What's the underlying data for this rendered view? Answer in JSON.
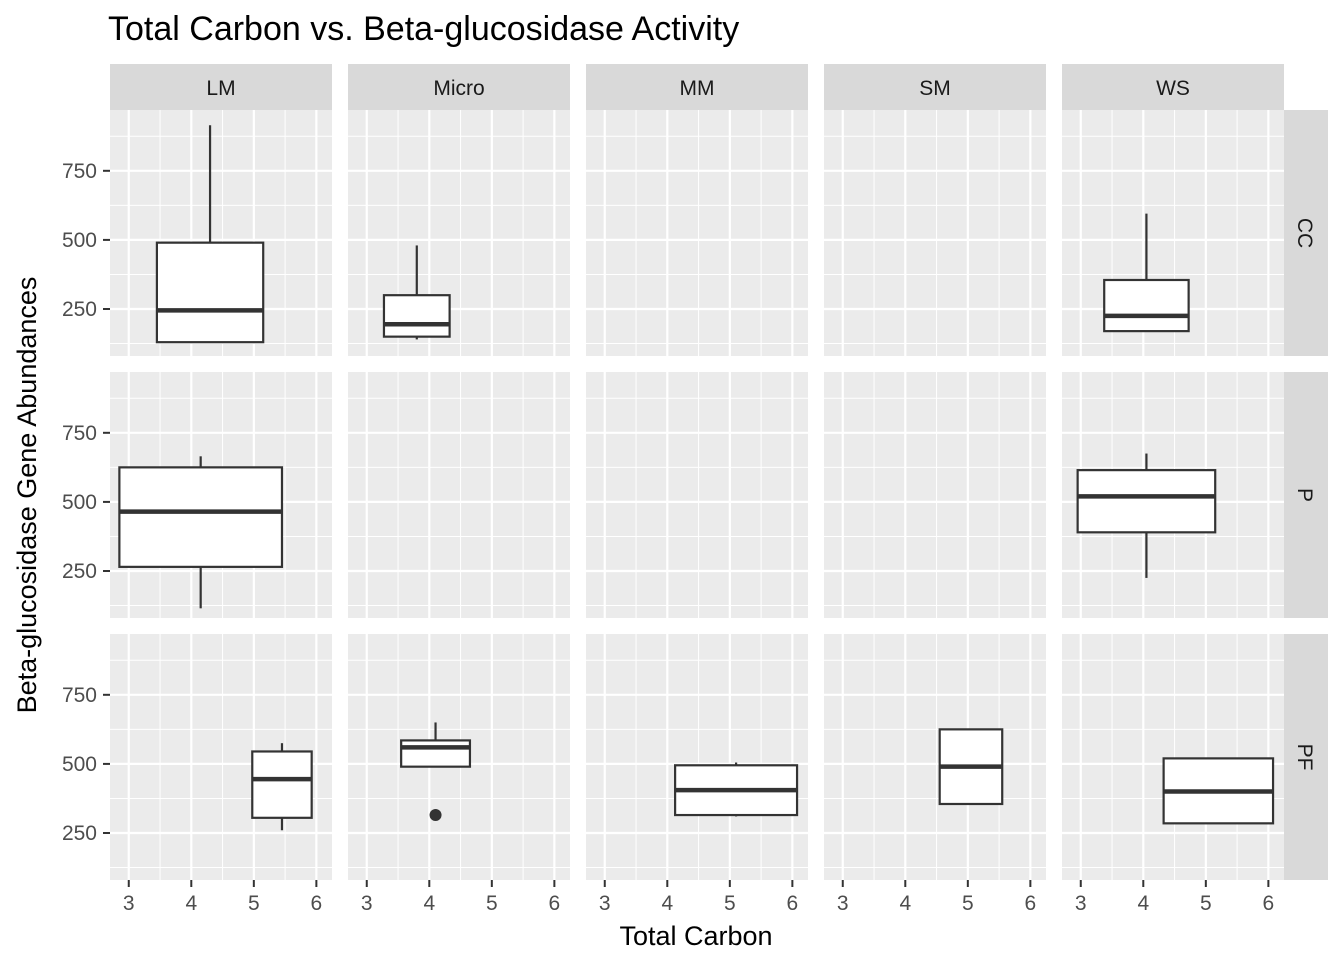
{
  "chart_data": {
    "type": "boxplot",
    "title": "Total Carbon vs. Beta-glucosidase Activity",
    "xlabel": "Total Carbon",
    "ylabel": "Beta-glucosidase Gene Abundances",
    "columns": [
      "LM",
      "Micro",
      "MM",
      "SM",
      "WS"
    ],
    "rows": [
      "CC",
      "P",
      "PF"
    ],
    "xlim": [
      2.7,
      6.25
    ],
    "ylim": [
      80,
      970
    ],
    "x_ticks": [
      3,
      4,
      5,
      6
    ],
    "y_ticks": [
      250,
      500,
      750
    ],
    "grid": true,
    "colors": {
      "panel_bg": "#ebebeb",
      "grid": "#ffffff",
      "strip_bg": "#d9d9d9",
      "box_fill": "#ffffff",
      "box_line": "#333333"
    },
    "boxes": [
      {
        "row": "CC",
        "col": "LM",
        "x_center": 4.3,
        "x_width": 1.7,
        "min": 130,
        "q1": 130,
        "median": 245,
        "q3": 490,
        "max": 915,
        "outliers": []
      },
      {
        "row": "CC",
        "col": "Micro",
        "x_center": 3.8,
        "x_width": 1.05,
        "min": 140,
        "q1": 150,
        "median": 195,
        "q3": 300,
        "max": 480,
        "outliers": []
      },
      {
        "row": "CC",
        "col": "WS",
        "x_center": 4.05,
        "x_width": 1.35,
        "min": 170,
        "q1": 170,
        "median": 225,
        "q3": 355,
        "max": 595,
        "outliers": []
      },
      {
        "row": "P",
        "col": "LM",
        "x_center": 4.15,
        "x_width": 2.6,
        "min": 115,
        "q1": 265,
        "median": 465,
        "q3": 625,
        "max": 665,
        "outliers": []
      },
      {
        "row": "P",
        "col": "WS",
        "x_center": 4.05,
        "x_width": 2.2,
        "min": 225,
        "q1": 390,
        "median": 520,
        "q3": 615,
        "max": 675,
        "outliers": []
      },
      {
        "row": "PF",
        "col": "LM",
        "x_center": 5.45,
        "x_width": 0.95,
        "min": 260,
        "q1": 305,
        "median": 445,
        "q3": 545,
        "max": 575,
        "outliers": []
      },
      {
        "row": "PF",
        "col": "Micro",
        "x_center": 4.1,
        "x_width": 1.1,
        "min": 490,
        "q1": 490,
        "median": 560,
        "q3": 585,
        "max": 650,
        "outliers": [
          315
        ]
      },
      {
        "row": "PF",
        "col": "MM",
        "x_center": 5.1,
        "x_width": 1.95,
        "min": 310,
        "q1": 315,
        "median": 405,
        "q3": 495,
        "max": 505,
        "outliers": []
      },
      {
        "row": "PF",
        "col": "SM",
        "x_center": 5.05,
        "x_width": 1.0,
        "min": 355,
        "q1": 355,
        "median": 490,
        "q3": 625,
        "max": 625,
        "outliers": []
      },
      {
        "row": "PF",
        "col": "WS",
        "x_center": 5.2,
        "x_width": 1.75,
        "min": 285,
        "q1": 285,
        "median": 400,
        "q3": 520,
        "max": 520,
        "outliers": []
      }
    ]
  }
}
